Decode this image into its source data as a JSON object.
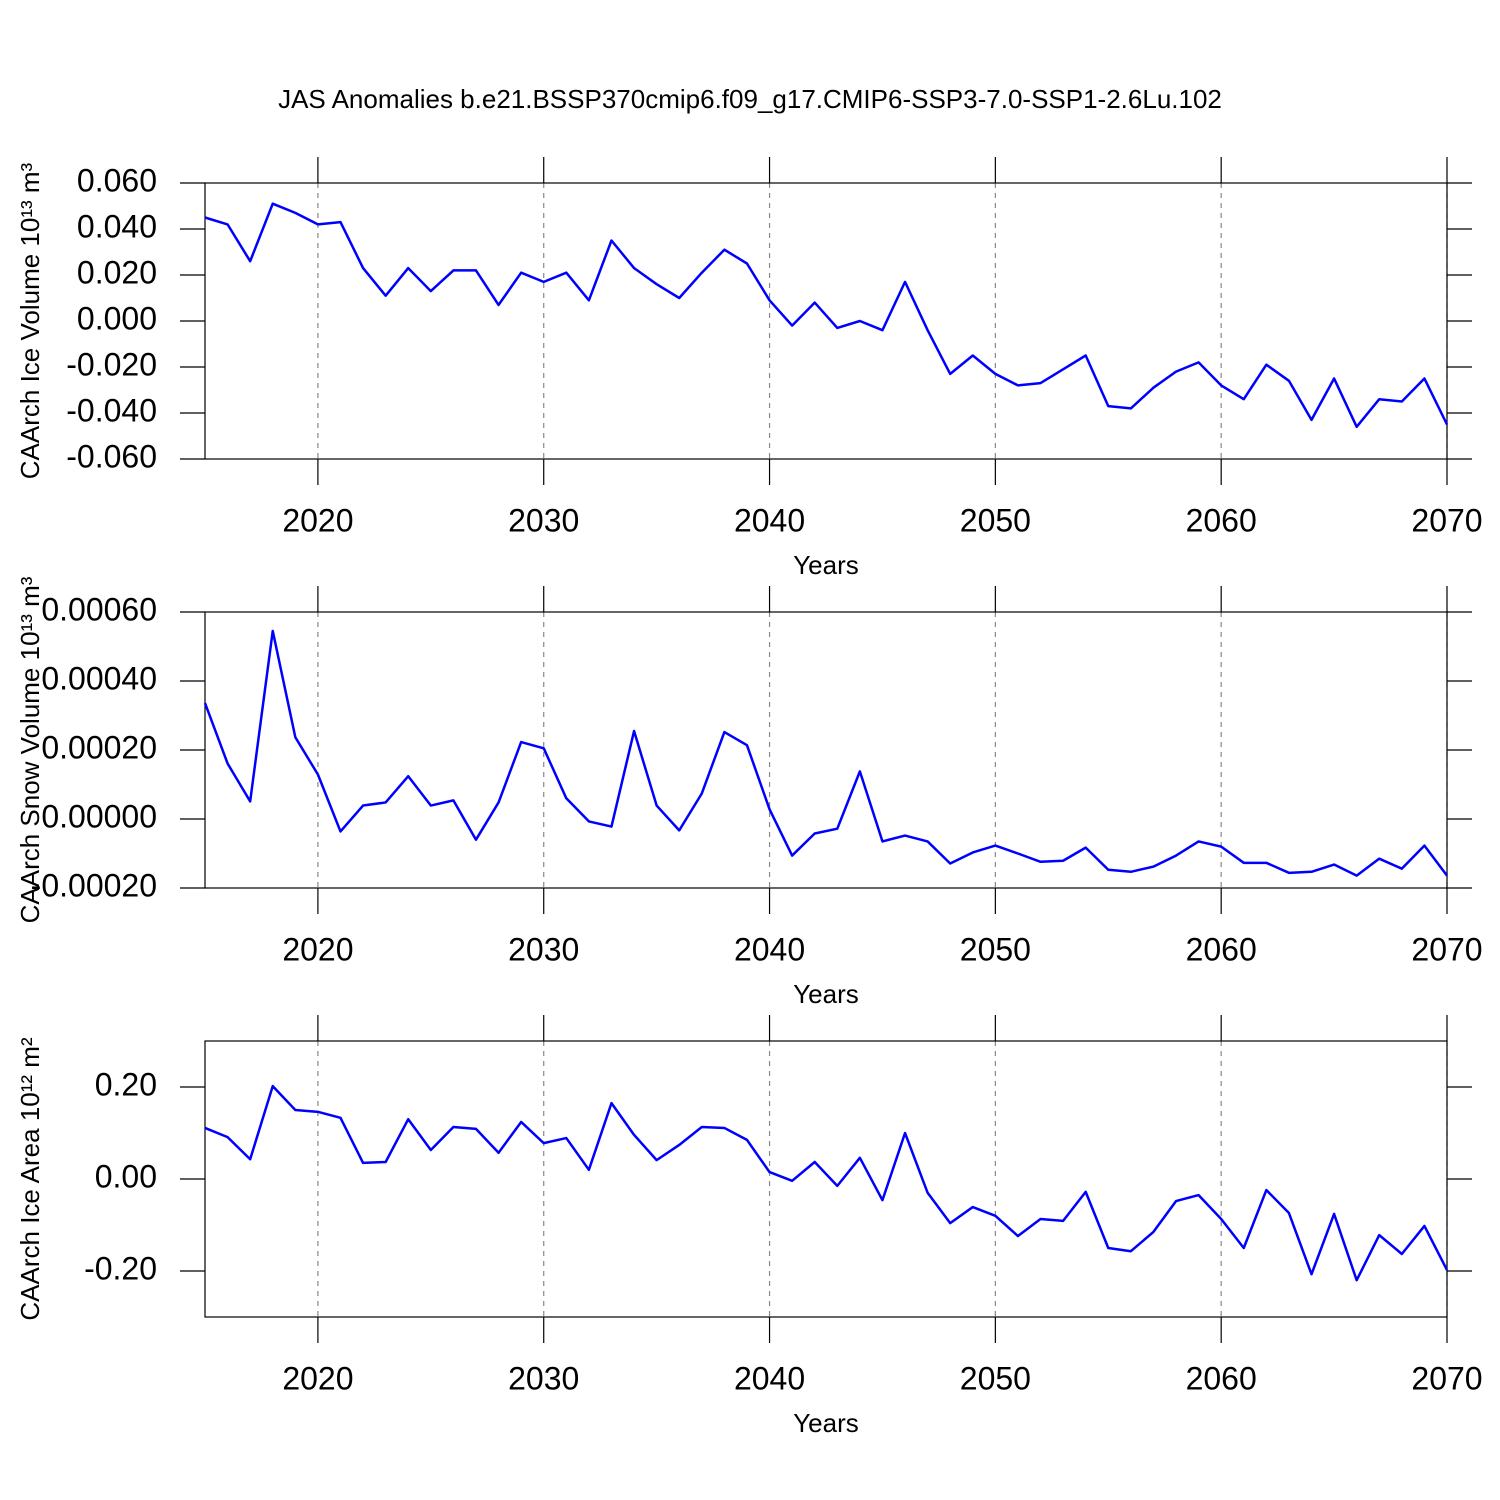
{
  "title": "JAS Anomalies b.e21.BSSP370cmip6.f09_g17.CMIP6-SSP3-7.0-SSP1-2.6Lu.102",
  "chart_data": [
    {
      "type": "line",
      "ylabel": "CAArch Ice Volume 10¹³ m³",
      "xlabel": "Years",
      "xgrid": true,
      "xlim": [
        2015,
        2070
      ],
      "xticks": [
        2020,
        2030,
        2040,
        2050,
        2060,
        2070
      ],
      "ylim": [
        -0.06,
        0.06
      ],
      "yticks": [
        {
          "value": -0.06,
          "label": "-0.060"
        },
        {
          "value": -0.04,
          "label": "-0.040"
        },
        {
          "value": -0.02,
          "label": "-0.020"
        },
        {
          "value": 0,
          "label": "0.000"
        },
        {
          "value": 0.02,
          "label": "0.020"
        },
        {
          "value": 0.04,
          "label": "0.040"
        },
        {
          "value": 0.06,
          "label": "0.060"
        }
      ],
      "x": [
        2015,
        2016,
        2017,
        2018,
        2019,
        2020,
        2021,
        2022,
        2023,
        2024,
        2025,
        2026,
        2027,
        2028,
        2029,
        2030,
        2031,
        2032,
        2033,
        2034,
        2035,
        2036,
        2037,
        2038,
        2039,
        2040,
        2041,
        2042,
        2043,
        2044,
        2045,
        2046,
        2047,
        2048,
        2049,
        2050,
        2051,
        2052,
        2053,
        2054,
        2055,
        2056,
        2057,
        2058,
        2059,
        2060,
        2061,
        2062,
        2063,
        2064,
        2065,
        2066,
        2067,
        2068,
        2069,
        2070
      ],
      "series": [
        {
          "color": "#0000ff",
          "values": [
            0.045,
            0.042,
            0.026,
            0.051,
            0.047,
            0.042,
            0.043,
            0.023,
            0.011,
            0.023,
            0.013,
            0.022,
            0.022,
            0.007,
            0.021,
            0.017,
            0.021,
            0.009,
            0.035,
            0.023,
            0.016,
            0.01,
            0.021,
            0.031,
            0.025,
            0.009,
            -0.002,
            0.008,
            -0.003,
            0.0,
            -0.004,
            0.017,
            -0.004,
            -0.023,
            -0.015,
            -0.023,
            -0.028,
            -0.027,
            -0.021,
            -0.015,
            -0.037,
            -0.038,
            -0.029,
            -0.022,
            -0.018,
            -0.028,
            -0.034,
            -0.019,
            -0.026,
            -0.043,
            -0.025,
            -0.046,
            -0.034,
            -0.035,
            -0.025,
            -0.045
          ]
        }
      ]
    },
    {
      "type": "line",
      "ylabel": "CAArch Snow Volume 10¹³ m³",
      "xlabel": "Years",
      "xgrid": true,
      "xlim": [
        2015,
        2070
      ],
      "xticks": [
        2020,
        2030,
        2040,
        2050,
        2060,
        2070
      ],
      "ylim": [
        -0.0002,
        0.0006
      ],
      "yticks": [
        {
          "value": -0.0002,
          "label": "-0.00020"
        },
        {
          "value": 0,
          "label": "0.00000"
        },
        {
          "value": 0.0002,
          "label": "0.00020"
        },
        {
          "value": 0.0004,
          "label": "0.00040"
        },
        {
          "value": 0.0006,
          "label": "0.00060"
        }
      ],
      "x": [
        2015,
        2016,
        2017,
        2018,
        2019,
        2020,
        2021,
        2022,
        2023,
        2024,
        2025,
        2026,
        2027,
        2028,
        2029,
        2030,
        2031,
        2032,
        2033,
        2034,
        2035,
        2036,
        2037,
        2038,
        2039,
        2040,
        2041,
        2042,
        2043,
        2044,
        2045,
        2046,
        2047,
        2048,
        2049,
        2050,
        2051,
        2052,
        2053,
        2054,
        2055,
        2056,
        2057,
        2058,
        2059,
        2060,
        2061,
        2062,
        2063,
        2064,
        2065,
        2066,
        2067,
        2068,
        2069,
        2070
      ],
      "series": [
        {
          "color": "#0000ff",
          "values": [
            0.000336,
            0.000161,
            5.1e-05,
            0.000545,
            0.000237,
            0.000129,
            -3.6e-05,
            3.9e-05,
            4.8e-05,
            0.000124,
            3.9e-05,
            5.4e-05,
            -6e-05,
            4.8e-05,
            0.000223,
            0.000205,
            6e-05,
            -7e-06,
            -2.2e-05,
            0.000255,
            3.9e-05,
            -3.3e-05,
            7.4e-05,
            0.000252,
            0.000214,
            2.8e-05,
            -0.000106,
            -4.2e-05,
            -2.8e-05,
            0.000138,
            -6.5e-05,
            -4.8e-05,
            -6.5e-05,
            -0.000129,
            -9.7e-05,
            -7.7e-05,
            -0.0001,
            -0.000124,
            -0.000121,
            -8.3e-05,
            -0.000147,
            -0.000153,
            -0.000138,
            -0.000106,
            -6.5e-05,
            -8e-05,
            -0.000127,
            -0.000127,
            -0.000156,
            -0.000153,
            -0.000132,
            -0.000164,
            -0.000115,
            -0.000144,
            -7.7e-05,
            -0.000164
          ]
        }
      ]
    },
    {
      "type": "line",
      "ylabel": "CAArch Ice Area 10¹² m²",
      "xlabel": "Years",
      "xgrid": true,
      "xlim": [
        2015,
        2070
      ],
      "xticks": [
        2020,
        2030,
        2040,
        2050,
        2060,
        2070
      ],
      "ylim": [
        -0.3,
        0.3
      ],
      "yticks": [
        {
          "value": -0.2,
          "label": "-0.20"
        },
        {
          "value": 0,
          "label": "0.00"
        },
        {
          "value": 0.2,
          "label": "0.20"
        }
      ],
      "x": [
        2015,
        2016,
        2017,
        2018,
        2019,
        2020,
        2021,
        2022,
        2023,
        2024,
        2025,
        2026,
        2027,
        2028,
        2029,
        2030,
        2031,
        2032,
        2033,
        2034,
        2035,
        2036,
        2037,
        2038,
        2039,
        2040,
        2041,
        2042,
        2043,
        2044,
        2045,
        2046,
        2047,
        2048,
        2049,
        2050,
        2051,
        2052,
        2053,
        2054,
        2055,
        2056,
        2057,
        2058,
        2059,
        2060,
        2061,
        2062,
        2063,
        2064,
        2065,
        2066,
        2067,
        2068,
        2069,
        2070
      ],
      "series": [
        {
          "color": "#0000ff",
          "values": [
            0.111,
            0.091,
            0.043,
            0.202,
            0.15,
            0.146,
            0.133,
            0.035,
            0.037,
            0.13,
            0.063,
            0.113,
            0.109,
            0.057,
            0.124,
            0.078,
            0.089,
            0.02,
            0.165,
            0.096,
            0.041,
            0.074,
            0.113,
            0.111,
            0.085,
            0.015,
            -0.004,
            0.037,
            -0.015,
            0.046,
            -0.046,
            0.1,
            -0.03,
            -0.096,
            -0.061,
            -0.08,
            -0.124,
            -0.087,
            -0.091,
            -0.028,
            -0.15,
            -0.157,
            -0.115,
            -0.048,
            -0.035,
            -0.087,
            -0.15,
            -0.024,
            -0.074,
            -0.207,
            -0.076,
            -0.22,
            -0.122,
            -0.163,
            -0.102,
            -0.198
          ]
        }
      ]
    }
  ]
}
